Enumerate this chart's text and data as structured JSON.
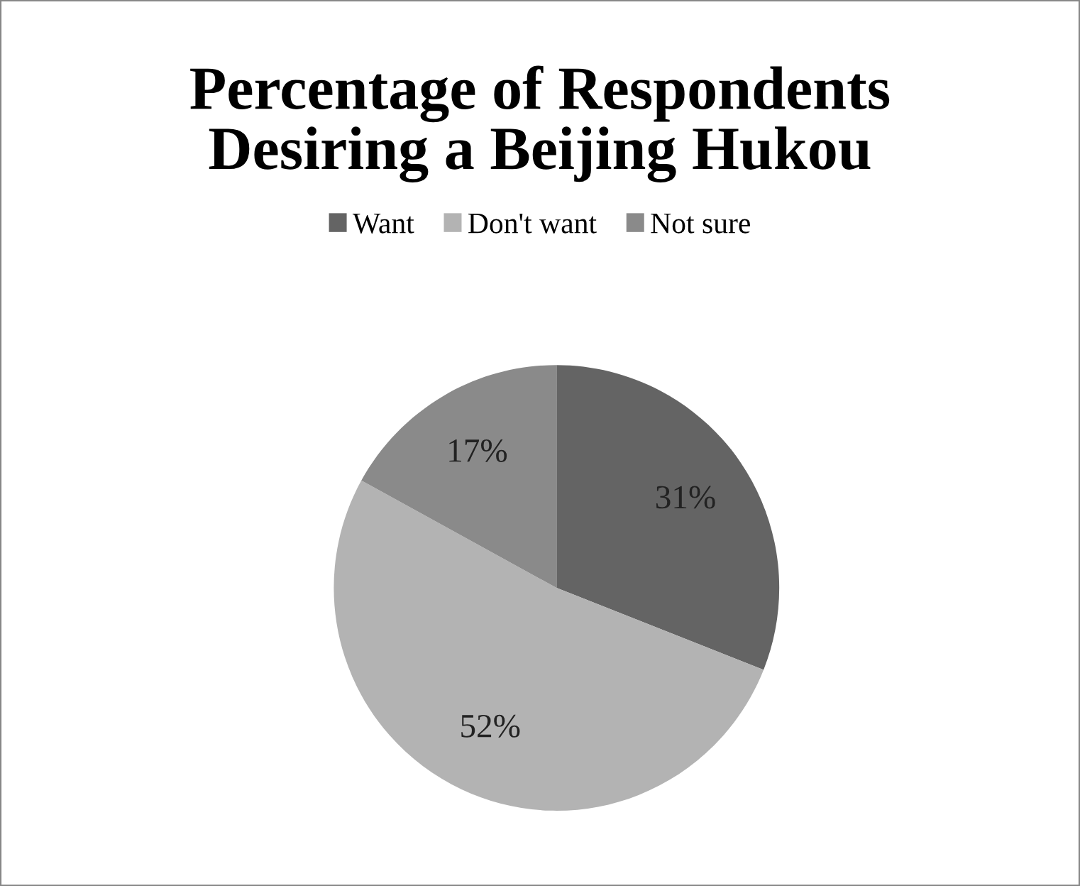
{
  "chart_data": {
    "type": "pie",
    "title": "Percentage of Respondents\nDesiring a Beijing Hukou",
    "categories": [
      "Want",
      "Don't want",
      "Not sure"
    ],
    "values": [
      31,
      52,
      17
    ],
    "colors": [
      "#646464",
      "#b3b3b3",
      "#8a8a8a"
    ],
    "value_labels": [
      "31%",
      "52%",
      "17%"
    ],
    "legend": "top"
  }
}
